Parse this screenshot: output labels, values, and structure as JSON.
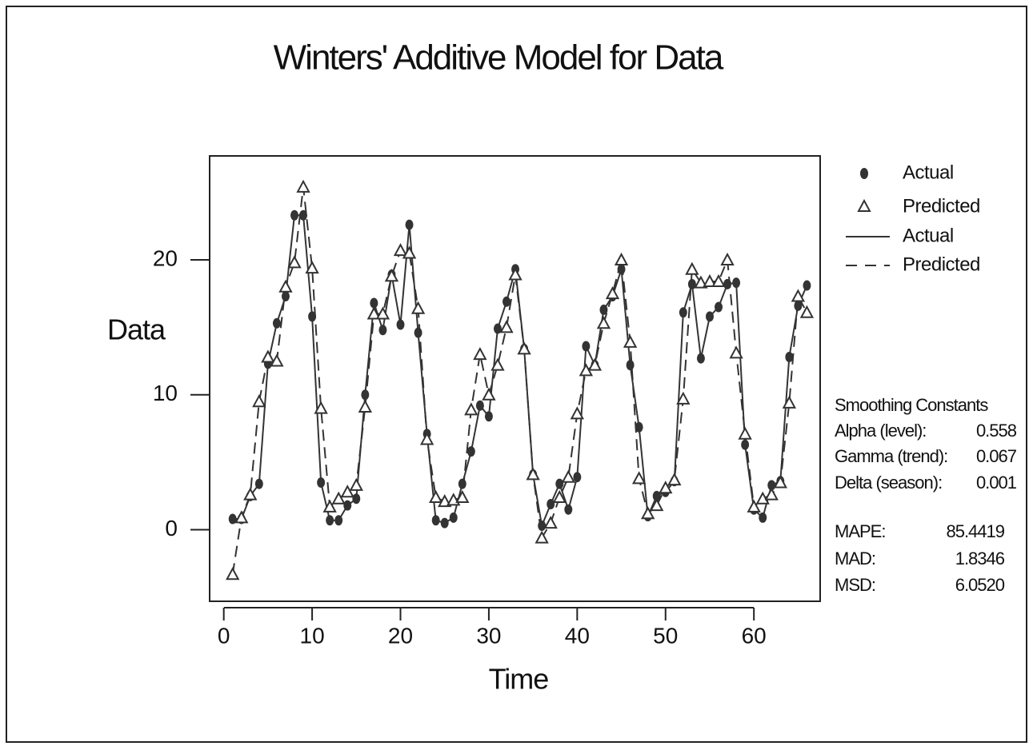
{
  "chart_data": {
    "type": "line",
    "title": "Winters' Additive Model for Data",
    "x_label": "Time",
    "y_label": "Data",
    "x": [
      1,
      2,
      3,
      4,
      5,
      6,
      7,
      8,
      9,
      10,
      11,
      12,
      13,
      14,
      15,
      16,
      17,
      18,
      19,
      20,
      21,
      22,
      23,
      24,
      25,
      26,
      27,
      28,
      29,
      30,
      31,
      32,
      33,
      34,
      35,
      36,
      37,
      38,
      39,
      40,
      41,
      42,
      43,
      44,
      45,
      46,
      47,
      48,
      49,
      50,
      51,
      52,
      53,
      54,
      55,
      56,
      57,
      58,
      59,
      60,
      61,
      62,
      63,
      64,
      65,
      66
    ],
    "series": [
      {
        "name": "Actual",
        "color": "#333333",
        "marker": "dot",
        "line": "solid",
        "values": [
          0.8,
          0.8,
          2.5,
          3.4,
          12.3,
          15.3,
          17.3,
          23.3,
          23.3,
          15.8,
          3.5,
          0.7,
          0.7,
          1.8,
          2.3,
          10.0,
          16.8,
          14.8,
          18.9,
          15.2,
          22.6,
          14.6,
          7.1,
          0.7,
          0.5,
          0.9,
          3.4,
          5.8,
          9.2,
          8.4,
          14.9,
          16.9,
          19.3,
          13.4,
          4.1,
          0.3,
          1.9,
          3.4,
          1.5,
          3.9,
          13.6,
          12.2,
          16.3,
          17.3,
          19.3,
          12.2,
          7.6,
          1.0,
          2.5,
          2.8,
          3.6,
          16.1,
          18.2,
          12.7,
          15.8,
          16.5,
          18.2,
          18.3,
          6.3,
          1.5,
          0.9,
          3.3,
          3.6,
          12.8,
          16.6,
          18.1
        ]
      },
      {
        "name": "Predicted",
        "color": "#333333",
        "marker": "triangle",
        "line": "dashed",
        "values": [
          -3.3,
          0.9,
          2.6,
          9.5,
          12.8,
          12.5,
          18.0,
          19.8,
          25.4,
          19.4,
          9.0,
          1.7,
          2.3,
          2.8,
          3.3,
          9.1,
          16.0,
          16.0,
          18.8,
          20.7,
          20.5,
          16.4,
          6.7,
          2.4,
          2.1,
          2.2,
          2.4,
          8.9,
          13.0,
          10.0,
          12.2,
          15.0,
          18.9,
          13.4,
          4.1,
          -0.6,
          0.5,
          2.4,
          3.9,
          8.6,
          11.8,
          12.2,
          15.3,
          17.5,
          20.0,
          13.9,
          3.8,
          1.2,
          1.8,
          3.1,
          3.7,
          9.7,
          19.3,
          18.3,
          18.4,
          18.4,
          20.0,
          13.1,
          7.1,
          1.7,
          2.3,
          2.6,
          3.5,
          9.4,
          17.3,
          16.1
        ]
      }
    ],
    "xlim": [
      -1.6,
      67.5
    ],
    "xticks": [
      0,
      10,
      20,
      30,
      40,
      50,
      60
    ],
    "ylim": [
      -5.3,
      27.7
    ],
    "yticks": [
      0,
      10,
      20
    ],
    "stats": {
      "heading": "Smoothing Constants",
      "constants": [
        {
          "label": "Alpha (level):",
          "value": "0.558"
        },
        {
          "label": "Gamma (trend):",
          "value": "0.067"
        },
        {
          "label": "Delta (season):",
          "value": "0.001"
        }
      ],
      "accuracy": [
        {
          "label": "MAPE:",
          "value": "85.4419"
        },
        {
          "label": "MAD:",
          "value": "1.8346"
        },
        {
          "label": "MSD:",
          "value": "6.0520"
        }
      ]
    }
  }
}
